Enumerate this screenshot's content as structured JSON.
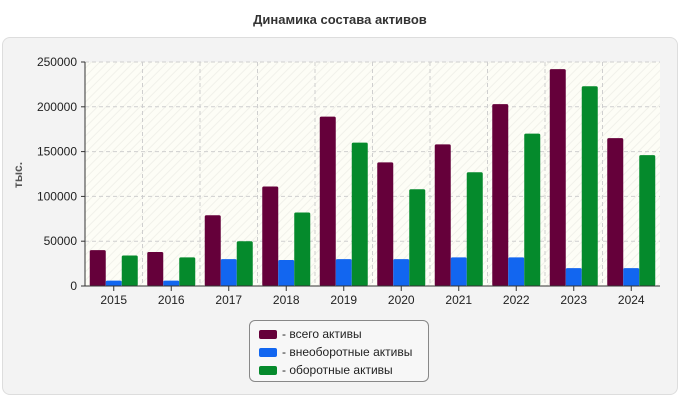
{
  "chart_data": {
    "type": "bar",
    "title": "Динамика состава активов",
    "xlabel": "",
    "ylabel": "тыс.",
    "ylim": [
      0,
      250000
    ],
    "yticks": [
      0,
      50000,
      100000,
      150000,
      200000,
      250000
    ],
    "ytick_labels": [
      "0",
      "50000",
      "100000",
      "150000",
      "200000",
      "250000"
    ],
    "grid": true,
    "legend_position": "bottom",
    "categories": [
      "2015",
      "2016",
      "2017",
      "2018",
      "2019",
      "2020",
      "2021",
      "2022",
      "2023",
      "2024"
    ],
    "series": [
      {
        "name": "- всего активы",
        "color": "#65003a",
        "values": [
          40000,
          38000,
          79000,
          111000,
          189000,
          138000,
          158000,
          203000,
          242000,
          165000
        ]
      },
      {
        "name": "- внеоборотные активы",
        "color": "#1266f0",
        "values": [
          6000,
          6000,
          30000,
          29000,
          30000,
          30000,
          32000,
          32000,
          20000,
          20000
        ]
      },
      {
        "name": "- оборотные активы",
        "color": "#058a2c",
        "values": [
          34000,
          32000,
          50000,
          82000,
          160000,
          108000,
          127000,
          170000,
          223000,
          146000
        ]
      }
    ]
  }
}
